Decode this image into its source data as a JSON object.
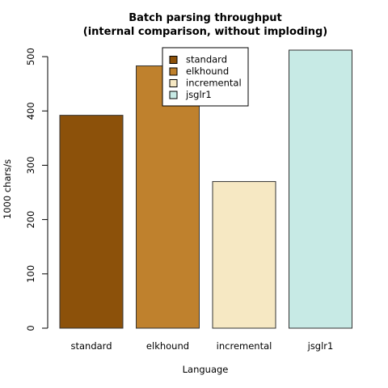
{
  "chart_data": {
    "type": "bar",
    "title": [
      "Batch parsing throughput",
      "(internal comparison, without imploding)"
    ],
    "xlabel": "Language",
    "ylabel": "1000 chars/s",
    "categories": [
      "standard",
      "elkhound",
      "incremental",
      "jsglr1"
    ],
    "values": [
      392,
      483,
      270,
      512
    ],
    "colors": [
      "#8c510a",
      "#bf812d",
      "#f6e8c3",
      "#c7eae5"
    ],
    "ylim": [
      0,
      512
    ],
    "yticks": [
      0,
      100,
      200,
      300,
      400,
      500
    ],
    "legend": {
      "placement": "top-center",
      "entries": [
        "standard",
        "elkhound",
        "incremental",
        "jsglr1"
      ]
    },
    "grid": false
  }
}
